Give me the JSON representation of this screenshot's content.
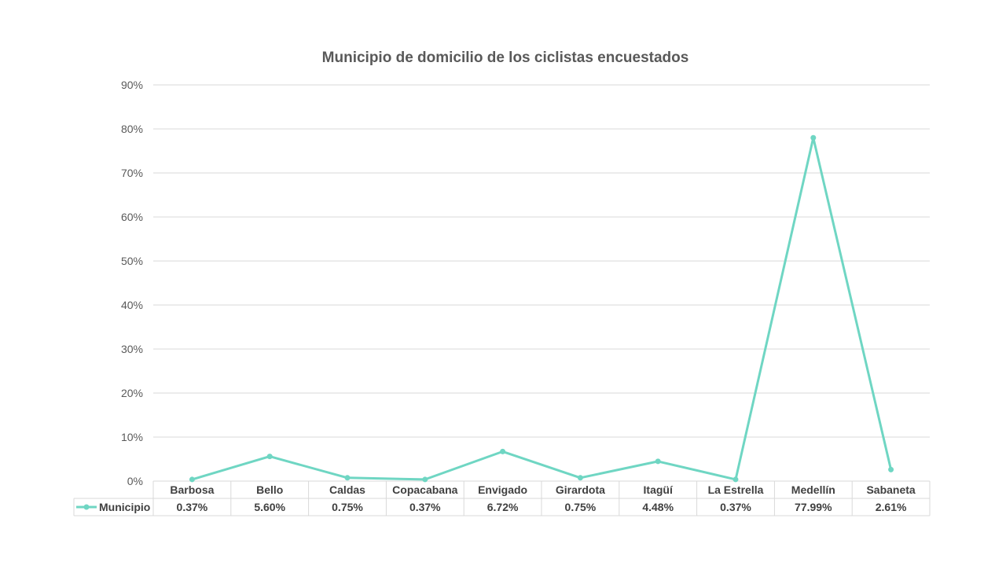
{
  "chart_data": {
    "type": "line",
    "title": "Municipio de domicilio de los ciclistas encuestados",
    "categories": [
      "Barbosa",
      "Bello",
      "Caldas",
      "Copacabana",
      "Envigado",
      "Girardota",
      "Itagüí",
      "La Estrella",
      "Medellín",
      "Sabaneta"
    ],
    "series": [
      {
        "name": "Municipio",
        "values": [
          0.37,
          5.6,
          0.75,
          0.37,
          6.72,
          0.75,
          4.48,
          0.37,
          77.99,
          2.61
        ],
        "value_labels": [
          "0.37%",
          "5.60%",
          "0.75%",
          "0.37%",
          "6.72%",
          "0.75%",
          "4.48%",
          "0.37%",
          "77.99%",
          "2.61%"
        ],
        "color": "#6fd6c3"
      }
    ],
    "y_ticks": [
      "0%",
      "10%",
      "20%",
      "30%",
      "40%",
      "50%",
      "60%",
      "70%",
      "80%",
      "90%"
    ],
    "ylim": [
      0,
      90
    ],
    "grid": true,
    "legend": "data table"
  }
}
